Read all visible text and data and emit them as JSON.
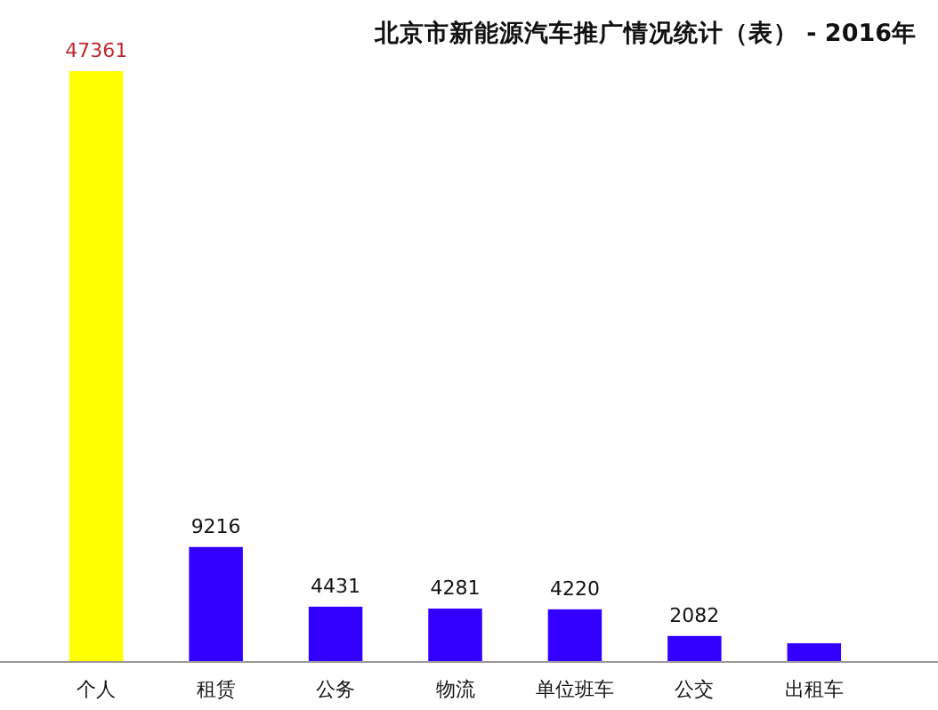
{
  "chart_data": {
    "type": "bar",
    "title": "北京市新能源汽车推广情况统计（表） - 2016年",
    "categories": [
      "个人",
      "租赁",
      "公务",
      "物流",
      "单位班车",
      "公交",
      "出租车"
    ],
    "values": [
      47361,
      9216,
      4431,
      4281,
      4220,
      2082,
      1500
    ],
    "colors": [
      "#ffff00",
      "#3300ff",
      "#3300ff",
      "#3300ff",
      "#3300ff",
      "#3300ff",
      "#3300ff"
    ],
    "value_labels": [
      "47361",
      "9216",
      "4431",
      "4281",
      "4220",
      "2082",
      null
    ]
  }
}
